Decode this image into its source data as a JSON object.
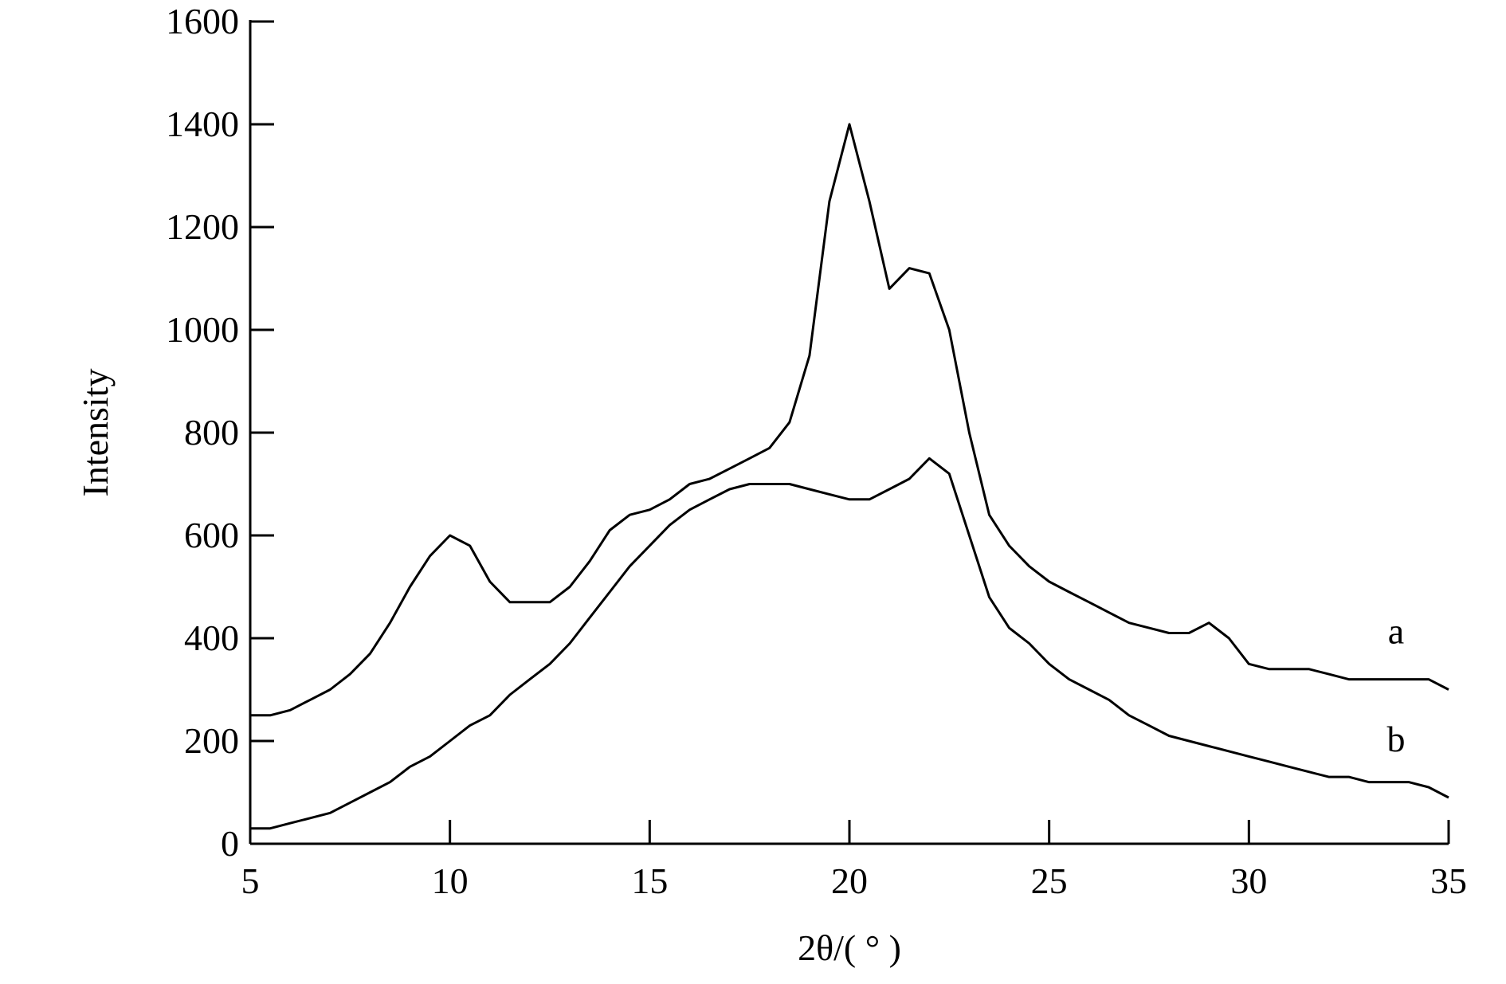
{
  "chart_data": {
    "type": "line",
    "xlabel": "2θ/( ° )",
    "ylabel": "Intensity",
    "x": [
      5,
      5.5,
      6,
      6.5,
      7,
      7.5,
      8,
      8.5,
      9,
      9.5,
      10,
      10.5,
      11,
      11.5,
      12,
      12.5,
      13,
      13.5,
      14,
      14.5,
      15,
      15.5,
      16,
      16.5,
      17,
      17.5,
      18,
      18.5,
      19,
      19.5,
      20,
      20.5,
      21,
      21.5,
      22,
      22.5,
      23,
      23.5,
      24,
      24.5,
      25,
      25.5,
      26,
      26.5,
      27,
      27.5,
      28,
      28.5,
      29,
      29.5,
      30,
      30.5,
      31,
      31.5,
      32,
      32.5,
      33,
      33.5,
      34,
      34.5,
      35
    ],
    "series": [
      {
        "name": "a",
        "color": "#000000",
        "values": [
          250,
          250,
          260,
          280,
          300,
          330,
          370,
          430,
          500,
          560,
          600,
          580,
          510,
          470,
          470,
          470,
          500,
          550,
          610,
          640,
          650,
          670,
          700,
          710,
          730,
          750,
          770,
          820,
          950,
          1250,
          1400,
          1250,
          1080,
          1120,
          1110,
          1000,
          800,
          640,
          580,
          540,
          510,
          490,
          470,
          450,
          430,
          420,
          410,
          410,
          430,
          400,
          350,
          340,
          340,
          340,
          330,
          320,
          320,
          320,
          320,
          320,
          300
        ]
      },
      {
        "name": "b",
        "color": "#000000",
        "values": [
          30,
          30,
          40,
          50,
          60,
          80,
          100,
          120,
          150,
          170,
          200,
          230,
          250,
          290,
          320,
          350,
          390,
          440,
          490,
          540,
          580,
          620,
          650,
          670,
          690,
          700,
          700,
          700,
          690,
          680,
          670,
          670,
          690,
          710,
          750,
          720,
          600,
          480,
          420,
          390,
          350,
          320,
          300,
          280,
          250,
          230,
          210,
          200,
          190,
          180,
          170,
          160,
          150,
          140,
          130,
          130,
          120,
          120,
          120,
          110,
          90
        ]
      }
    ],
    "xlim": [
      5,
      35
    ],
    "xticks": [
      5,
      10,
      15,
      20,
      25,
      30,
      35
    ],
    "ylim": [
      0,
      1600
    ],
    "yticks": [
      0,
      200,
      400,
      600,
      800,
      1000,
      1200,
      1400,
      1600
    ]
  }
}
